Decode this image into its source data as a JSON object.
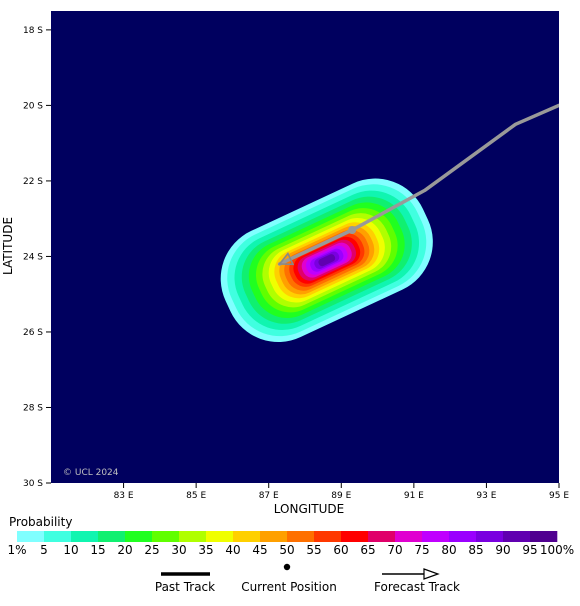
{
  "map": {
    "copyright": "© UCL 2024",
    "xlabel": "LONGITUDE",
    "ylabel": "LATITUDE",
    "background_color": "#00005f",
    "lon_range": [
      81,
      95
    ],
    "lat_range": [
      17.5,
      30
    ],
    "lat_ticks": [
      "18 S",
      "20 S",
      "22 S",
      "24 S",
      "26 S",
      "28 S",
      "30 S"
    ],
    "lat_tick_values": [
      18,
      20,
      22,
      24,
      26,
      28,
      30
    ],
    "lon_ticks": [
      "83 E",
      "85 E",
      "87 E",
      "89 E",
      "91 E",
      "93 E",
      "95 E"
    ],
    "lon_tick_values": [
      83,
      85,
      87,
      89,
      91,
      93,
      95
    ]
  },
  "storm": {
    "current_position": {
      "lon": 89.3,
      "lat": 23.3
    },
    "track_path": [
      [
        95,
        20.0
      ],
      [
        93.8,
        20.5
      ],
      [
        91.3,
        22.25
      ],
      [
        89.3,
        23.3
      ],
      [
        87.3,
        24.2
      ]
    ],
    "probability_swath": {
      "center": {
        "lon": 88.6,
        "lat": 24.1
      },
      "rotation_deg": -25,
      "bands_percent_and_extent": [
        {
          "pct": 1,
          "rx_deg": 3.0,
          "ry_deg": 1.55
        },
        {
          "pct": 5,
          "rx_deg": 2.82,
          "ry_deg": 1.42
        },
        {
          "pct": 10,
          "rx_deg": 2.62,
          "ry_deg": 1.28
        },
        {
          "pct": 15,
          "rx_deg": 2.42,
          "ry_deg": 1.15
        },
        {
          "pct": 20,
          "rx_deg": 2.22,
          "ry_deg": 1.03
        },
        {
          "pct": 25,
          "rx_deg": 2.02,
          "ry_deg": 0.92
        },
        {
          "pct": 30,
          "rx_deg": 1.84,
          "ry_deg": 0.82
        },
        {
          "pct": 35,
          "rx_deg": 1.66,
          "ry_deg": 0.73
        },
        {
          "pct": 40,
          "rx_deg": 1.5,
          "ry_deg": 0.65
        },
        {
          "pct": 45,
          "rx_deg": 1.36,
          "ry_deg": 0.58
        },
        {
          "pct": 50,
          "rx_deg": 1.22,
          "ry_deg": 0.51
        },
        {
          "pct": 55,
          "rx_deg": 1.08,
          "ry_deg": 0.44
        },
        {
          "pct": 60,
          "rx_deg": 0.96,
          "ry_deg": 0.38
        },
        {
          "pct": 65,
          "rx_deg": 0.84,
          "ry_deg": 0.33
        },
        {
          "pct": 70,
          "rx_deg": 0.72,
          "ry_deg": 0.28
        },
        {
          "pct": 75,
          "rx_deg": 0.6,
          "ry_deg": 0.23
        },
        {
          "pct": 80,
          "rx_deg": 0.48,
          "ry_deg": 0.18
        },
        {
          "pct": 85,
          "rx_deg": 0.36,
          "ry_deg": 0.14
        },
        {
          "pct": 90,
          "rx_deg": 0.24,
          "ry_deg": 0.1
        }
      ]
    }
  },
  "colorbar": {
    "title": "Probability",
    "labels": [
      "1%",
      "5",
      "10",
      "15",
      "20",
      "25",
      "30",
      "35",
      "40",
      "45",
      "50",
      "55",
      "60",
      "65",
      "70",
      "75",
      "80",
      "85",
      "90",
      "95",
      "100%"
    ],
    "colors": [
      "#80ffff",
      "#40ffe0",
      "#10f5b0",
      "#10f070",
      "#20ff20",
      "#60ff00",
      "#b0ff00",
      "#f0ff00",
      "#ffd000",
      "#ffa000",
      "#ff7000",
      "#ff3800",
      "#ff0000",
      "#e0006a",
      "#e000d0",
      "#c000ff",
      "#9a00ff",
      "#7a00e0",
      "#6000b0",
      "#500090"
    ]
  },
  "legend": {
    "past_track": "Past Track",
    "current_position": "Current Position",
    "forecast_track": "Forecast Track"
  }
}
